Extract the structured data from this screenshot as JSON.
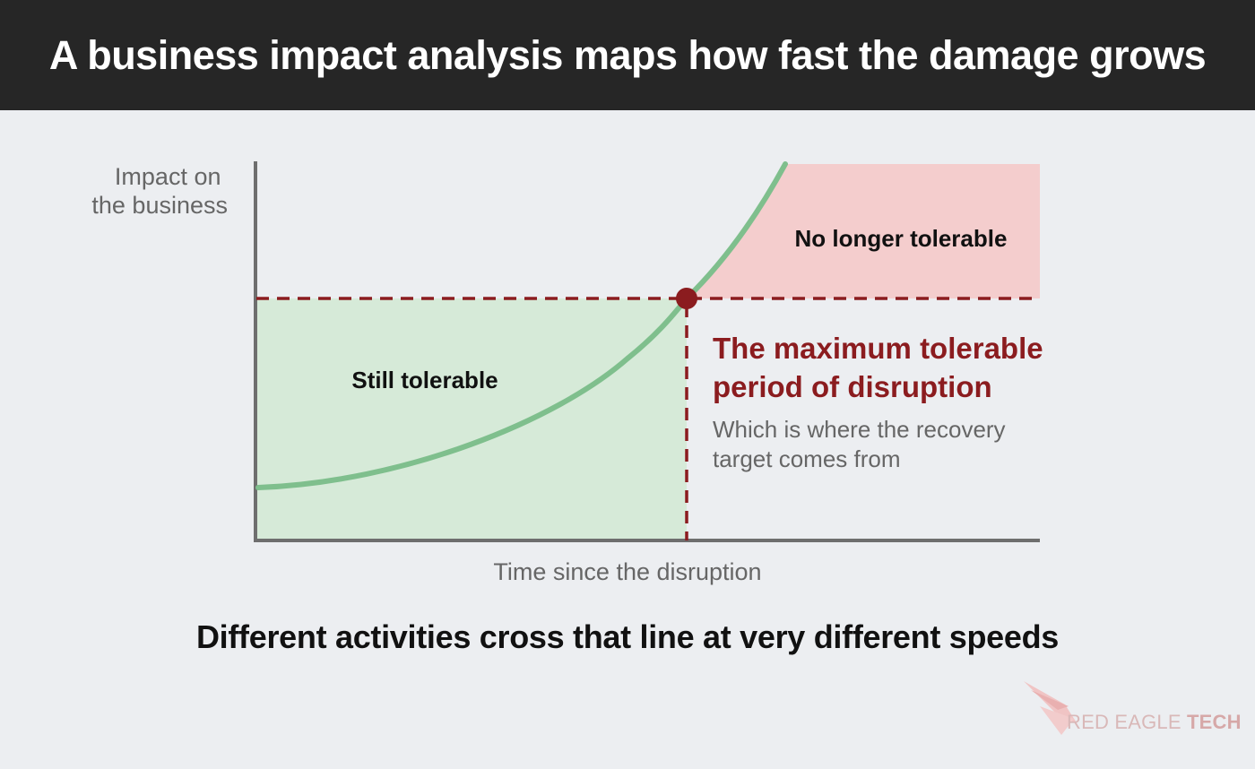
{
  "title": "A business impact analysis maps how fast the damage grows",
  "axes": {
    "y_label_line1": "Impact on",
    "y_label_line2": "the business",
    "x_label": "Time since the disruption"
  },
  "regions": {
    "tolerable": "Still tolerable",
    "intolerable": "No longer tolerable"
  },
  "threshold": {
    "heading_line1": "The maximum tolerable",
    "heading_line2": "period of disruption",
    "note_line1": "Which is where the recovery",
    "note_line2": "target comes from"
  },
  "caption": "Different activities cross that line at very different speeds",
  "logo": {
    "text_main": "RED EAGLE",
    "text_accent": "TECH"
  },
  "colors": {
    "title_bg": "#262626",
    "background": "#eceef1",
    "tolerable_fill": "#d6ead8",
    "intolerable_fill": "#f4cdcd",
    "curve": "#7fbf8d",
    "threshold": "#8b1c1f",
    "axis": "#6e6e6e"
  }
}
